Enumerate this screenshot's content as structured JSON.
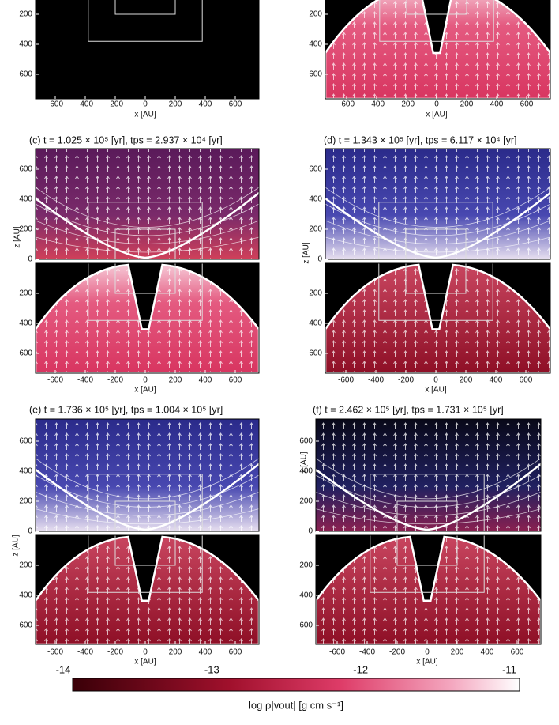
{
  "figure": {
    "panels": [
      {
        "id": "a"
      },
      {
        "id": "b"
      },
      {
        "id": "c",
        "title": "(c) t = 1.025 × 10⁵ [yr], tps = 2.937 × 10⁴ [yr]"
      },
      {
        "id": "d",
        "title": "(d) t = 1.343 × 10⁵ [yr], tps = 6.117 × 10⁴ [yr]"
      },
      {
        "id": "e",
        "title": "(e) t = 1.736 × 10⁵ [yr], tps = 1.004 × 10⁵ [yr]"
      },
      {
        "id": "f",
        "title": "(f) t = 2.462 × 10⁵ [yr], tps = 1.731 × 10⁵ [yr]"
      }
    ],
    "x_label": "x [AU]",
    "z_label": "z [AU]",
    "x_ticks": [
      -600,
      -400,
      -200,
      0,
      200,
      400,
      600
    ],
    "z_ticks_top": [
      600,
      400,
      200,
      0
    ],
    "z_ticks_bottom": [
      200,
      400,
      600
    ],
    "colorbar": {
      "range": [
        -14,
        -11
      ],
      "ticks": [
        -14,
        -13,
        -12,
        -11
      ],
      "label": "log ρ|vout| [g cm s⁻¹]"
    }
  }
}
